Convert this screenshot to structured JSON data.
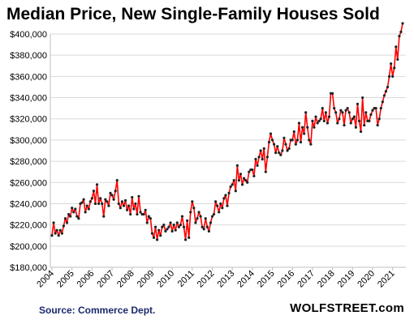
{
  "chart_data": {
    "type": "line",
    "title": "Median Price, New Single-Family Houses Sold",
    "xlabel": "",
    "ylabel": "",
    "ylim": [
      180000,
      400000
    ],
    "yticks": [
      "$180,000",
      "$200,000",
      "$220,000",
      "$240,000",
      "$260,000",
      "$280,000",
      "$300,000",
      "$320,000",
      "$340,000",
      "$360,000",
      "$380,000",
      "$400,000"
    ],
    "xticks": [
      "2004",
      "2005",
      "2006",
      "2007",
      "2008",
      "2009",
      "2010",
      "2011",
      "2012",
      "2013",
      "2014",
      "2015",
      "2016",
      "2017",
      "2018",
      "2019",
      "2020",
      "2021"
    ],
    "grid": "horizontal",
    "line_color": "#ff0000",
    "marker_color": "#222222",
    "series": [
      {
        "start": "2004-01",
        "frequency": "monthly",
        "values": [
          210000,
          222000,
          212000,
          215000,
          210000,
          215000,
          212000,
          219000,
          226000,
          222000,
          230000,
          228000,
          236000,
          232000,
          235000,
          228000,
          226000,
          240000,
          241000,
          244000,
          232000,
          238000,
          235000,
          242000,
          245000,
          252000,
          240000,
          258000,
          240000,
          245000,
          240000,
          228000,
          244000,
          242000,
          238000,
          250000,
          248000,
          244000,
          252000,
          262000,
          240000,
          236000,
          242000,
          238000,
          243000,
          234000,
          238000,
          230000,
          246000,
          235000,
          240000,
          230000,
          247000,
          232000,
          230000,
          230000,
          234000,
          222000,
          228000,
          226000,
          212000,
          208000,
          218000,
          206000,
          215000,
          210000,
          218000,
          220000,
          214000,
          216000,
          218000,
          222000,
          214000,
          220000,
          215000,
          222000,
          218000,
          220000,
          228000,
          218000,
          206000,
          224000,
          208000,
          232000,
          242000,
          236000,
          222000,
          226000,
          232000,
          228000,
          218000,
          216000,
          226000,
          218000,
          214000,
          222000,
          228000,
          230000,
          242000,
          238000,
          232000,
          240000,
          236000,
          245000,
          248000,
          238000,
          250000,
          256000,
          258000,
          262000,
          252000,
          276000,
          262000,
          268000,
          258000,
          264000,
          262000,
          260000,
          270000,
          272000,
          272000,
          266000,
          282000,
          276000,
          284000,
          290000,
          282000,
          292000,
          270000,
          284000,
          298000,
          306000,
          300000,
          296000,
          288000,
          294000,
          288000,
          286000,
          290000,
          302000,
          296000,
          290000,
          292000,
          300000,
          300000,
          308000,
          296000,
          300000,
          316000,
          298000,
          312000,
          306000,
          326000,
          312000,
          300000,
          296000,
          318000,
          312000,
          322000,
          316000,
          318000,
          320000,
          330000,
          318000,
          326000,
          316000,
          322000,
          344000,
          344000,
          330000,
          326000,
          316000,
          320000,
          328000,
          326000,
          314000,
          328000,
          330000,
          326000,
          316000,
          320000,
          322000,
          312000,
          334000,
          318000,
          308000,
          340000,
          314000,
          326000,
          318000,
          318000,
          324000,
          328000,
          330000,
          330000,
          314000,
          320000,
          330000,
          336000,
          342000,
          346000,
          350000,
          360000,
          372000,
          360000,
          368000,
          388000,
          376000,
          398000,
          402000,
          410000
        ]
      }
    ]
  },
  "footer": {
    "source": "Source: Commerce Dept.",
    "brand": "WOLFSTREET.com"
  }
}
